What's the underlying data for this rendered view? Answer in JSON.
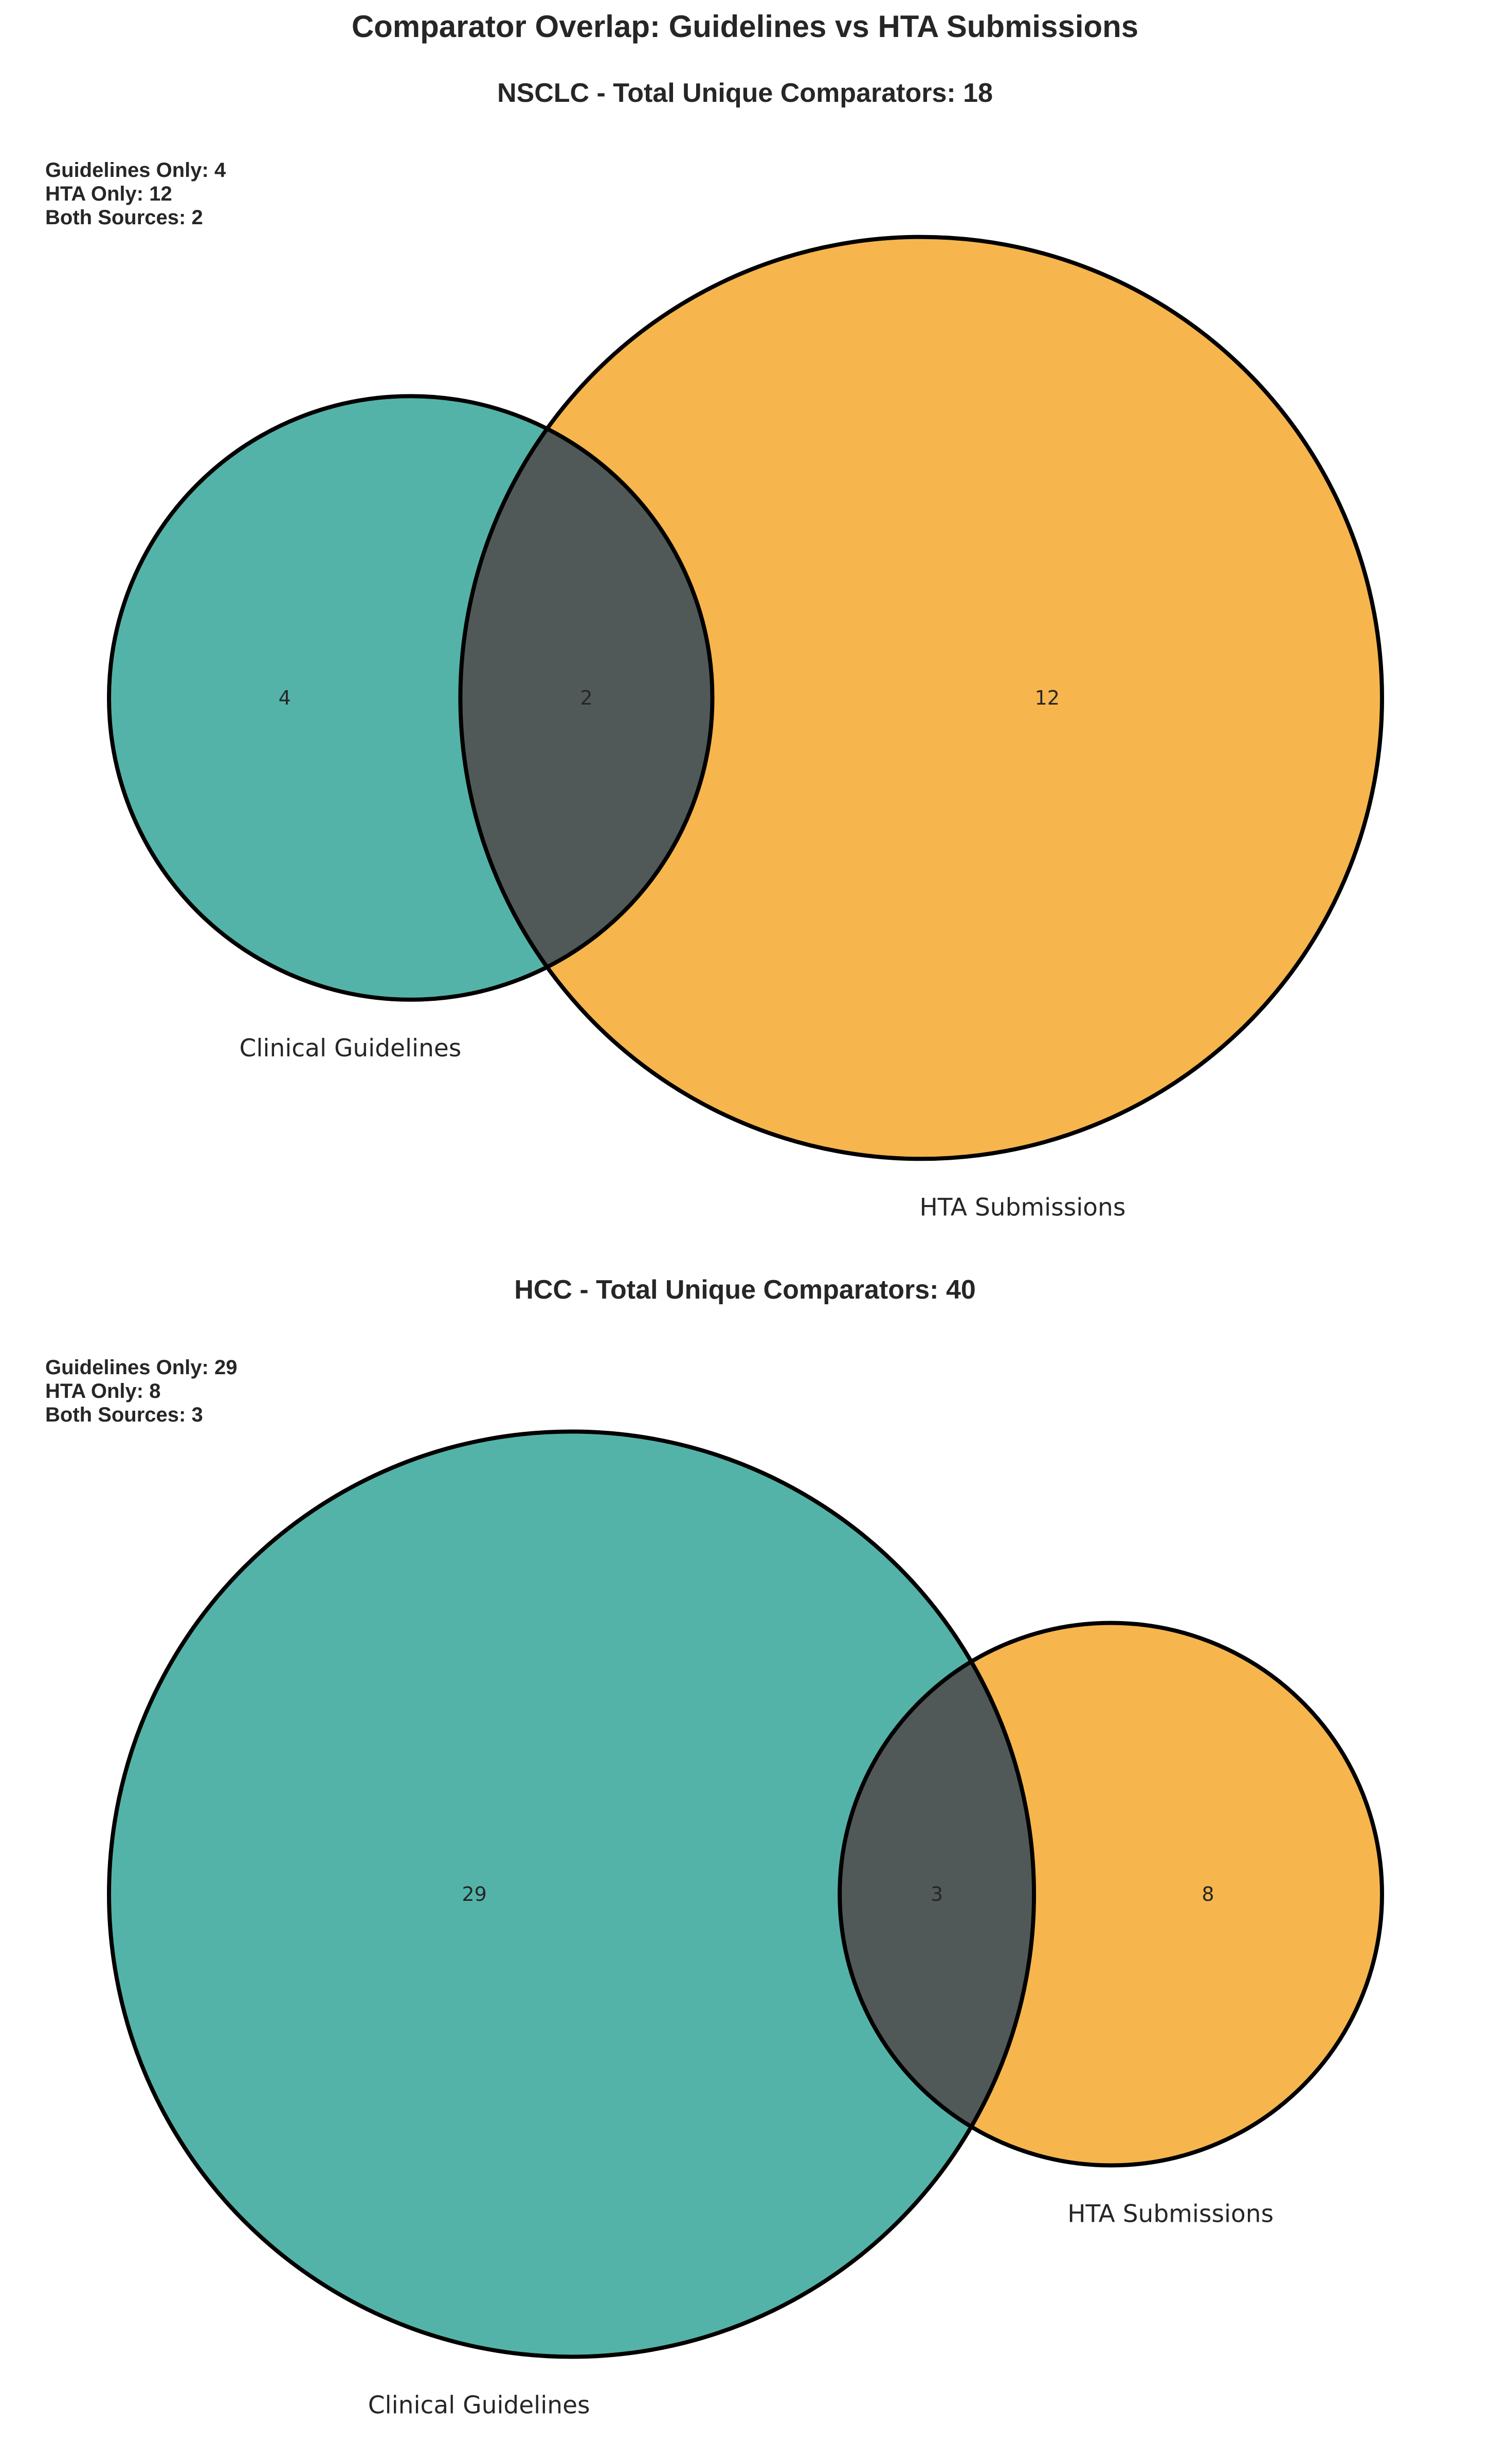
{
  "figure": {
    "title": "Comparator Overlap: Guidelines vs HTA Submissions"
  },
  "chart_data": [
    {
      "type": "venn",
      "title": "NSCLC - Total Unique Comparators: 18",
      "sets": [
        "Clinical Guidelines",
        "HTA Submissions"
      ],
      "values": {
        "a_only": 4,
        "overlap": 2,
        "b_only": 12
      },
      "stats": [
        "Guidelines Only: 4",
        "HTA Only: 12",
        "Both Sources: 2"
      ],
      "colors": {
        "a": "#1b998b",
        "b": "#f39c12",
        "overlap": "#34495e"
      }
    },
    {
      "type": "venn",
      "title": "HCC - Total Unique Comparators: 40",
      "sets": [
        "Clinical Guidelines",
        "HTA Submissions"
      ],
      "values": {
        "a_only": 29,
        "overlap": 3,
        "b_only": 8
      },
      "stats": [
        "Guidelines Only: 29",
        "HTA Only: 8",
        "Both Sources: 3"
      ],
      "colors": {
        "a": "#1b998b",
        "b": "#f39c12",
        "overlap": "#34495e"
      }
    }
  ]
}
